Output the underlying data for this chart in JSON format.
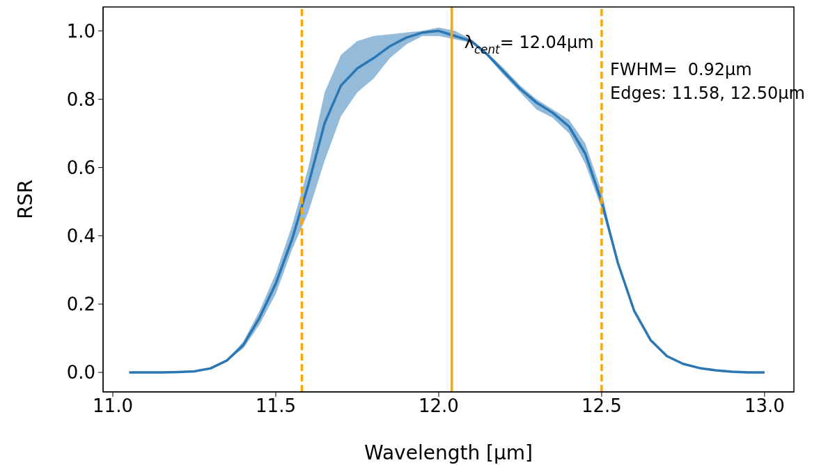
{
  "chart_data": {
    "type": "line",
    "xlabel": "Wavelength [μm]",
    "ylabel": "RSR",
    "x": [
      11.05,
      11.1,
      11.15,
      11.2,
      11.25,
      11.3,
      11.35,
      11.4,
      11.45,
      11.5,
      11.55,
      11.6,
      11.65,
      11.7,
      11.75,
      11.8,
      11.85,
      11.9,
      11.95,
      12.0,
      12.05,
      12.1,
      12.15,
      12.2,
      12.25,
      12.3,
      12.35,
      12.4,
      12.45,
      12.5,
      12.55,
      12.6,
      12.65,
      12.7,
      12.75,
      12.8,
      12.85,
      12.9,
      12.95,
      13.0
    ],
    "series": [
      {
        "color": "#2a77b4",
        "values": [
          0,
          0,
          0,
          0.001,
          0.003,
          0.012,
          0.035,
          0.08,
          0.16,
          0.26,
          0.39,
          0.55,
          0.73,
          0.84,
          0.89,
          0.92,
          0.955,
          0.98,
          0.995,
          1.0,
          0.985,
          0.97,
          0.93,
          0.88,
          0.83,
          0.79,
          0.76,
          0.72,
          0.64,
          0.5,
          0.32,
          0.18,
          0.095,
          0.048,
          0.025,
          0.013,
          0.006,
          0.002,
          0,
          0
        ],
        "lower": [
          0,
          0,
          0,
          0.001,
          0.003,
          0.012,
          0.035,
          0.07,
          0.14,
          0.23,
          0.36,
          0.47,
          0.62,
          0.75,
          0.82,
          0.86,
          0.92,
          0.96,
          0.985,
          0.985,
          0.975,
          0.965,
          0.925,
          0.87,
          0.82,
          0.77,
          0.745,
          0.7,
          0.61,
          0.48,
          0.32,
          0.18,
          0.095,
          0.048,
          0.025,
          0.013,
          0.006,
          0.002,
          0,
          0
        ],
        "upper": [
          0,
          0,
          0,
          0.001,
          0.003,
          0.012,
          0.035,
          0.09,
          0.18,
          0.29,
          0.43,
          0.6,
          0.82,
          0.93,
          0.97,
          0.985,
          0.99,
          0.995,
          1.0,
          1.01,
          1.0,
          0.975,
          0.935,
          0.89,
          0.84,
          0.8,
          0.77,
          0.74,
          0.67,
          0.53,
          0.32,
          0.18,
          0.095,
          0.048,
          0.025,
          0.013,
          0.006,
          0.002,
          0,
          0
        ]
      }
    ],
    "xlim": [
      10.97,
      13.09
    ],
    "ylim": [
      -0.057,
      1.07
    ],
    "xticks": [
      {
        "value": 11.0,
        "label": "11.0"
      },
      {
        "value": 11.5,
        "label": "11.5"
      },
      {
        "value": 12.0,
        "label": "12.0"
      },
      {
        "value": 12.5,
        "label": "12.5"
      },
      {
        "value": 13.0,
        "label": "13.0"
      }
    ],
    "yticks": [
      {
        "value": 0,
        "label": "0.0"
      },
      {
        "value": 0.2,
        "label": "0.2"
      },
      {
        "value": 0.4,
        "label": "0.4"
      },
      {
        "value": 0.6,
        "label": "0.6"
      },
      {
        "value": 0.8,
        "label": "0.8"
      },
      {
        "value": 1.0,
        "label": "1.0"
      }
    ],
    "ref_lines": [
      {
        "axis": "x",
        "value": 11.58,
        "color": "#ffa500",
        "line_style": "dashed"
      },
      {
        "axis": "x",
        "value": 12.04,
        "color": "#ffa500",
        "line_style": "solid"
      },
      {
        "axis": "x",
        "value": 12.5,
        "color": "#ffa500",
        "line_style": "dashed"
      }
    ],
    "annotations": [
      {
        "text": "λ$_{cent}$= 12.04μm",
        "x": 12.04,
        "y": 1.0
      },
      "FWHM=  0.92μm",
      "Edges: 11.58, 12.50μm"
    ],
    "grid": false,
    "legend": false,
    "marker": "none",
    "line_style": "solid"
  }
}
